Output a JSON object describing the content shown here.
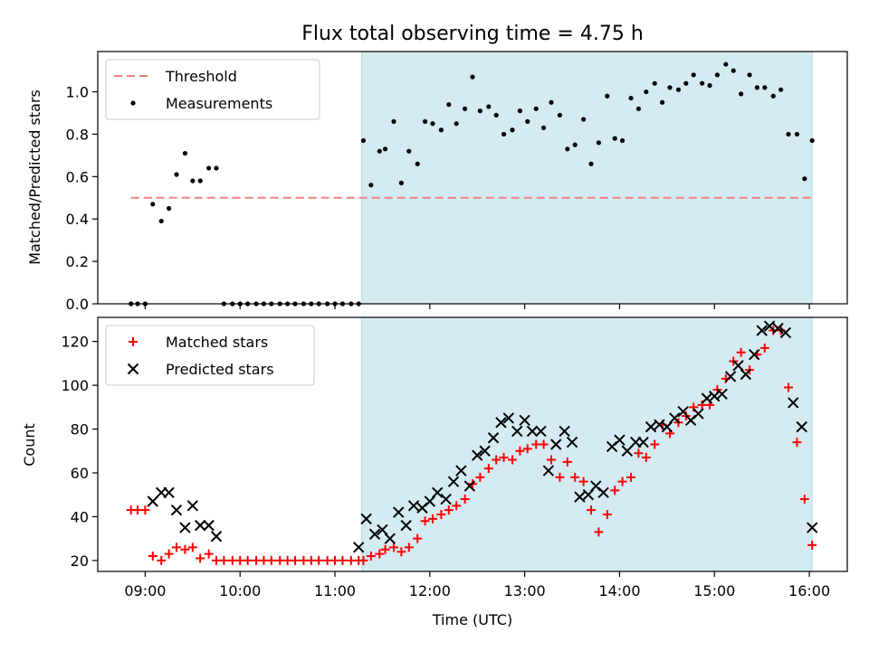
{
  "figure": {
    "title": "Flux total observing time = 4.75 h"
  },
  "chart_data": [
    {
      "type": "scatter",
      "ylabel": "Matched/Predicted stars",
      "xlabel": "",
      "xlim_hours": [
        8.5,
        16.4
      ],
      "ylim": [
        0,
        1.19
      ],
      "yticks": [
        "0.0",
        "0.2",
        "0.4",
        "0.6",
        "0.8",
        "1.0"
      ],
      "ytick_values": [
        0,
        0.2,
        0.4,
        0.6,
        0.8,
        1.0
      ],
      "shaded_interval_hours": [
        11.28,
        16.03
      ],
      "shade_color": "#d4ebf2",
      "legend": {
        "placement": "top-left",
        "entries": [
          "Threshold",
          "Measurements"
        ]
      },
      "series": [
        {
          "name": "Threshold",
          "kind": "dashed-line",
          "color": "#f08080",
          "x": [
            8.85,
            16.03
          ],
          "y": [
            0.5,
            0.5
          ]
        },
        {
          "name": "Measurements",
          "kind": "points",
          "color": "#000000",
          "x": [
            8.85,
            8.92,
            9.0,
            9.08,
            9.17,
            9.25,
            9.33,
            9.42,
            9.5,
            9.58,
            9.67,
            9.75,
            9.83,
            9.92,
            10.0,
            10.08,
            10.17,
            10.25,
            10.33,
            10.42,
            10.5,
            10.58,
            10.67,
            10.75,
            10.83,
            10.92,
            11.0,
            11.08,
            11.17,
            11.25,
            11.3,
            11.38,
            11.47,
            11.53,
            11.62,
            11.7,
            11.78,
            11.87,
            11.95,
            12.03,
            12.12,
            12.2,
            12.28,
            12.37,
            12.45,
            12.53,
            12.62,
            12.7,
            12.78,
            12.87,
            12.95,
            13.03,
            13.12,
            13.2,
            13.28,
            13.37,
            13.45,
            13.53,
            13.62,
            13.7,
            13.78,
            13.87,
            13.95,
            14.03,
            14.12,
            14.2,
            14.28,
            14.37,
            14.45,
            14.53,
            14.62,
            14.7,
            14.78,
            14.87,
            14.95,
            15.03,
            15.12,
            15.2,
            15.28,
            15.37,
            15.45,
            15.53,
            15.62,
            15.7,
            15.78,
            15.87,
            15.95,
            16.03
          ],
          "y": [
            0,
            0,
            0,
            0.47,
            0.39,
            0.45,
            0.61,
            0.71,
            0.58,
            0.58,
            0.64,
            0.64,
            0,
            0,
            0,
            0,
            0,
            0,
            0,
            0,
            0,
            0,
            0,
            0,
            0,
            0,
            0,
            0,
            0,
            0,
            0.77,
            0.56,
            0.72,
            0.73,
            0.86,
            0.57,
            0.72,
            0.66,
            0.86,
            0.85,
            0.82,
            0.94,
            0.85,
            0.92,
            1.07,
            0.91,
            0.93,
            0.89,
            0.8,
            0.82,
            0.91,
            0.86,
            0.92,
            0.83,
            0.95,
            0.89,
            0.73,
            0.75,
            0.87,
            0.66,
            0.76,
            0.98,
            0.78,
            0.77,
            0.97,
            0.92,
            1.0,
            1.04,
            0.95,
            1.02,
            1.01,
            1.04,
            1.08,
            1.04,
            1.03,
            1.08,
            1.13,
            1.1,
            0.99,
            1.08,
            1.02,
            1.02,
            0.98,
            1.01,
            0.8,
            0.8,
            0.59,
            0.77
          ]
        }
      ]
    },
    {
      "type": "scatter",
      "ylabel": "Count",
      "xlabel": "Time (UTC)",
      "xlim_hours": [
        8.5,
        16.4
      ],
      "ylim": [
        15,
        131
      ],
      "yticks": [
        "20",
        "40",
        "60",
        "80",
        "100",
        "120"
      ],
      "ytick_values": [
        20,
        40,
        60,
        80,
        100,
        120
      ],
      "xticks": [
        "09:00",
        "10:00",
        "11:00",
        "12:00",
        "13:00",
        "14:00",
        "15:00",
        "16:00"
      ],
      "xtick_values": [
        9,
        10,
        11,
        12,
        13,
        14,
        15,
        16
      ],
      "shaded_interval_hours": [
        11.28,
        16.03
      ],
      "shade_color": "#d4ebf2",
      "legend": {
        "placement": "top-left",
        "entries": [
          "Matched stars",
          "Predicted stars"
        ]
      },
      "series": [
        {
          "name": "Matched stars",
          "marker": "+",
          "color": "#ff0000",
          "x": [
            8.85,
            8.92,
            9.0,
            9.08,
            9.17,
            9.25,
            9.33,
            9.42,
            9.5,
            9.58,
            9.67,
            9.75,
            9.83,
            9.92,
            10.0,
            10.08,
            10.17,
            10.25,
            10.33,
            10.42,
            10.5,
            10.58,
            10.67,
            10.75,
            10.83,
            10.92,
            11.0,
            11.08,
            11.17,
            11.25,
            11.3,
            11.38,
            11.47,
            11.53,
            11.62,
            11.7,
            11.78,
            11.87,
            11.95,
            12.03,
            12.12,
            12.2,
            12.28,
            12.37,
            12.45,
            12.53,
            12.62,
            12.7,
            12.78,
            12.87,
            12.95,
            13.03,
            13.12,
            13.2,
            13.28,
            13.37,
            13.45,
            13.53,
            13.62,
            13.7,
            13.78,
            13.87,
            13.95,
            14.03,
            14.12,
            14.2,
            14.28,
            14.37,
            14.45,
            14.53,
            14.62,
            14.7,
            14.78,
            14.87,
            14.95,
            15.03,
            15.12,
            15.2,
            15.28,
            15.37,
            15.45,
            15.53,
            15.62,
            15.7,
            15.78,
            15.87,
            15.95,
            16.03
          ],
          "y": [
            43,
            43,
            43,
            22,
            20,
            23,
            26,
            25,
            26,
            21,
            23,
            20,
            20,
            20,
            20,
            20,
            20,
            20,
            20,
            20,
            20,
            20,
            20,
            20,
            20,
            20,
            20,
            20,
            20,
            20,
            20,
            22,
            23,
            25,
            26,
            24,
            26,
            30,
            38,
            39,
            41,
            43,
            45,
            48,
            55,
            58,
            62,
            66,
            67,
            66,
            70,
            71,
            73,
            73,
            66,
            58,
            65,
            58,
            56,
            43,
            33,
            41,
            52,
            56,
            58,
            69,
            67,
            73,
            82,
            78,
            83,
            86,
            90,
            91,
            91,
            98,
            103,
            111,
            115,
            107,
            114,
            117,
            125,
            125,
            99,
            74,
            48,
            27
          ]
        },
        {
          "name": "Predicted stars",
          "marker": "x",
          "color": "#000000",
          "x": [
            9.08,
            9.17,
            9.25,
            9.33,
            9.42,
            9.5,
            9.58,
            9.67,
            9.75,
            11.25,
            11.33,
            11.42,
            11.5,
            11.58,
            11.67,
            11.75,
            11.83,
            11.92,
            12.0,
            12.08,
            12.17,
            12.25,
            12.33,
            12.42,
            12.5,
            12.58,
            12.67,
            12.75,
            12.83,
            12.92,
            13.0,
            13.08,
            13.17,
            13.25,
            13.33,
            13.42,
            13.5,
            13.58,
            13.67,
            13.75,
            13.83,
            13.92,
            14.0,
            14.08,
            14.17,
            14.25,
            14.33,
            14.42,
            14.5,
            14.58,
            14.67,
            14.75,
            14.83,
            14.92,
            15.0,
            15.08,
            15.17,
            15.25,
            15.33,
            15.42,
            15.5,
            15.58,
            15.67,
            15.75,
            15.83,
            15.92,
            16.03
          ],
          "y": [
            47,
            51,
            51,
            43,
            35,
            45,
            36,
            36,
            31,
            26,
            39,
            32,
            34,
            30,
            42,
            36,
            45,
            44,
            47,
            51,
            48,
            56,
            61,
            54,
            68,
            70,
            76,
            83,
            85,
            79,
            84,
            79,
            79,
            61,
            73,
            79,
            74,
            49,
            50,
            54,
            51,
            72,
            75,
            70,
            74,
            74,
            81,
            82,
            81,
            85,
            88,
            84,
            87,
            94,
            95,
            96,
            104,
            109,
            105,
            114,
            125,
            127,
            126,
            124,
            92,
            81,
            35
          ]
        }
      ]
    }
  ]
}
